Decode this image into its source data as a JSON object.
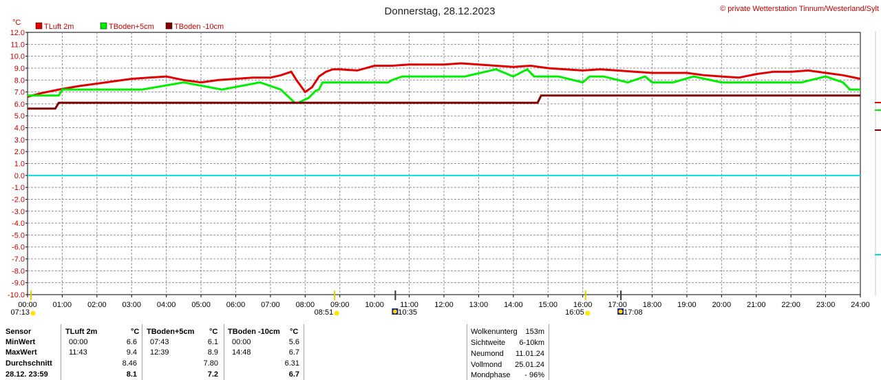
{
  "chart_data": {
    "type": "line",
    "title": "Donnerstag, 28.12.2023",
    "copyright": "© private Wetterstation Tinnum/Westerland/Sylt",
    "ylabel": "°C",
    "ylim": [
      -10,
      12
    ],
    "yticks": [
      "12.0",
      "11.0",
      "10.0",
      "9.0",
      "8.0",
      "7.0",
      "6.0",
      "5.0",
      "4.0",
      "3.0",
      "2.0",
      "1.0",
      "0.0",
      "-1.0",
      "-2.0",
      "-3.0",
      "-4.0",
      "-5.0",
      "-6.0",
      "-7.0",
      "-8.0",
      "-9.0",
      "-10.0"
    ],
    "xticks": [
      "00:00",
      "01:00",
      "02:00",
      "03:00",
      "04:00",
      "05:00",
      "06:00",
      "07:00",
      "08:00",
      "09:00",
      "10:00",
      "11:00",
      "12:00",
      "13:00",
      "14:00",
      "15:00",
      "16:00",
      "17:00",
      "18:00",
      "19:00",
      "20:00",
      "21:00",
      "22:00",
      "23:00",
      "24:00"
    ],
    "xlim": [
      0,
      24
    ],
    "grid": true,
    "legend_position": "top-left",
    "series": [
      {
        "name": "TLuft 2m",
        "color": "#e00000",
        "x": [
          0,
          0.4,
          0.9,
          1.5,
          2,
          2.5,
          3,
          3.5,
          4,
          4.5,
          5,
          5.5,
          6,
          6.5,
          7,
          7.3,
          7.6,
          7.75,
          7.85,
          8,
          8.2,
          8.4,
          8.6,
          8.8,
          9,
          9.5,
          10,
          10.5,
          11,
          11.5,
          12,
          12.5,
          13,
          13.5,
          14,
          14.5,
          15,
          15.5,
          16,
          16.5,
          17,
          17.5,
          18,
          18.5,
          19,
          19.5,
          20,
          20.5,
          21,
          21.5,
          22,
          22.5,
          23,
          23.5,
          24
        ],
        "y": [
          6.6,
          6.9,
          7.2,
          7.5,
          7.7,
          7.9,
          8.1,
          8.2,
          8.3,
          8.0,
          7.8,
          8.0,
          8.1,
          8.2,
          8.2,
          8.4,
          8.7,
          8.0,
          7.6,
          7.0,
          7.4,
          8.3,
          8.7,
          8.9,
          8.9,
          8.8,
          9.2,
          9.2,
          9.3,
          9.3,
          9.3,
          9.4,
          9.3,
          9.2,
          9.1,
          9.2,
          9.0,
          8.9,
          8.8,
          8.9,
          8.8,
          8.7,
          8.6,
          8.6,
          8.6,
          8.4,
          8.3,
          8.2,
          8.5,
          8.7,
          8.7,
          8.8,
          8.6,
          8.4,
          8.1
        ]
      },
      {
        "name": "TBoden+5cm",
        "color": "#00ee00",
        "x": [
          0,
          0.9,
          1,
          3.3,
          4.5,
          5.6,
          6.7,
          7.3,
          7.7,
          7.8,
          8.1,
          8.3,
          8.4,
          8.5,
          8.6,
          10.4,
          10.5,
          10.8,
          11.3,
          12.6,
          13.5,
          14,
          14.4,
          14.6,
          15,
          15.3,
          16,
          16.2,
          16.6,
          17.3,
          17.8,
          18,
          18.6,
          19.2,
          20,
          21,
          22.3,
          23,
          23.5,
          23.7,
          24
        ],
        "y": [
          6.7,
          6.7,
          7.2,
          7.2,
          7.8,
          7.2,
          7.8,
          7.2,
          6.1,
          6.1,
          6.5,
          7.1,
          7.2,
          7.8,
          7.8,
          7.8,
          8.0,
          8.3,
          8.3,
          8.3,
          8.9,
          8.3,
          8.9,
          8.3,
          8.3,
          8.3,
          7.8,
          8.3,
          8.3,
          7.8,
          8.3,
          7.8,
          7.8,
          8.3,
          7.8,
          7.8,
          7.8,
          8.3,
          7.8,
          7.2,
          7.2
        ]
      },
      {
        "name": "TBoden -10cm",
        "color": "#800000",
        "x": [
          0,
          0.8,
          0.9,
          14.7,
          14.8,
          24
        ],
        "y": [
          5.6,
          5.6,
          6.1,
          6.1,
          6.7,
          6.7
        ]
      }
    ],
    "zero_line_color": "#00dddd",
    "markers": [
      {
        "label": "07:13",
        "x": 0.1,
        "row": 1,
        "icon": "sun-yellow"
      },
      {
        "label": "08:51",
        "x": 8.85,
        "row": 1,
        "icon": "sun-yellow"
      },
      {
        "label": "10:35",
        "x": 10.6,
        "row": 1,
        "icon": "moon-blue"
      },
      {
        "label": "16:05",
        "x": 16.08,
        "row": 1,
        "icon": "sun-yellow"
      },
      {
        "label": "17:08",
        "x": 17.1,
        "row": 1,
        "icon": "moon-blue"
      }
    ]
  },
  "table": {
    "headers": [
      "Sensor",
      "TLuft 2m",
      "°C",
      "TBoden+5cm",
      "°C",
      "TBoden -10cm",
      "°C"
    ],
    "rows": [
      {
        "label": "MinWert",
        "cells": [
          "00:00",
          "6.6",
          "07:43",
          "6.1",
          "00:00",
          "5.6"
        ]
      },
      {
        "label": "MaxWert",
        "cells": [
          "11:43",
          "9.4",
          "12:39",
          "8.9",
          "14:48",
          "6.7"
        ]
      },
      {
        "label": "Durchschnitt",
        "cells": [
          "",
          "8.46",
          "",
          "7.80",
          "",
          "6.31"
        ]
      },
      {
        "label": "28.12. 23:59",
        "cells": [
          "",
          "8.1",
          "",
          "7.2",
          "",
          "6.7"
        ]
      }
    ]
  },
  "info": [
    {
      "label": "Wolkenunterg",
      "value": "153m"
    },
    {
      "label": "Sichtweite",
      "value": "6-10km"
    },
    {
      "label": "Neumond",
      "value": "11.01.24"
    },
    {
      "label": "Vollmond",
      "value": "25.01.24"
    },
    {
      "label": "Mondphase",
      "value": "- 96%"
    }
  ]
}
